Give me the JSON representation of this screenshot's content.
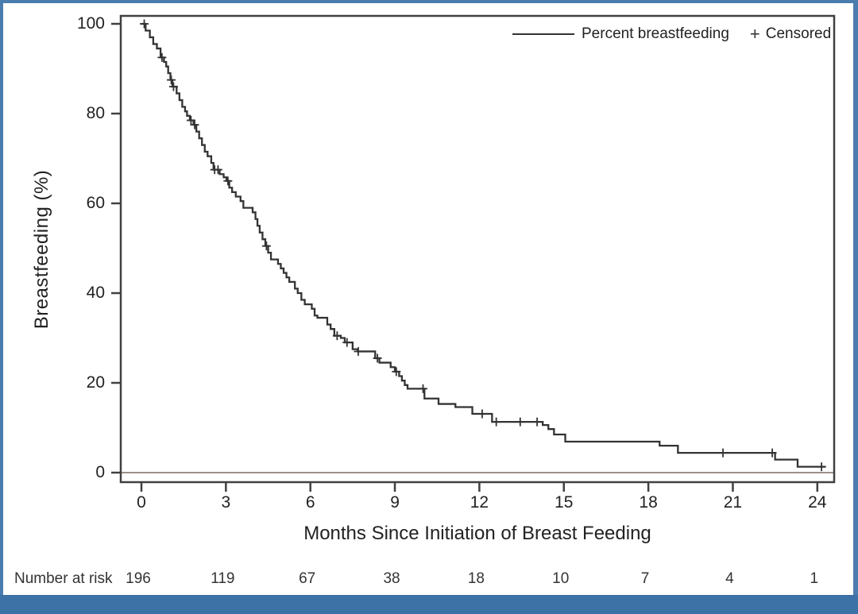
{
  "chart_data": {
    "type": "line",
    "subtype": "kaplan-meier-step",
    "xlabel": "Months Since Initiation of Breast Feeding",
    "ylabel": "Breastfeeding (%)",
    "x_ticks": [
      0,
      3,
      6,
      9,
      12,
      15,
      18,
      21,
      24
    ],
    "y_ticks": [
      0,
      20,
      40,
      60,
      80,
      100
    ],
    "xlim": [
      -0.75,
      24.6
    ],
    "ylim": [
      -2,
      102
    ],
    "grid": false,
    "legend_position": "top-right-inside",
    "legend": {
      "series_label": "Percent breastfeeding",
      "censored_marker": "+",
      "censored_label": "Censored"
    },
    "series_start": [
      0,
      100
    ],
    "series_end_month": 24.3,
    "steps": [
      [
        0.15,
        98.5
      ],
      [
        0.3,
        97
      ],
      [
        0.42,
        95.5
      ],
      [
        0.55,
        94.5
      ],
      [
        0.68,
        92.5
      ],
      [
        0.8,
        91.5
      ],
      [
        0.88,
        90.5
      ],
      [
        0.95,
        89
      ],
      [
        1.03,
        87.5
      ],
      [
        1.1,
        86
      ],
      [
        1.25,
        84.5
      ],
      [
        1.35,
        83
      ],
      [
        1.45,
        81.5
      ],
      [
        1.55,
        80.5
      ],
      [
        1.62,
        79.5
      ],
      [
        1.72,
        78.5
      ],
      [
        1.85,
        77.5
      ],
      [
        1.95,
        76
      ],
      [
        2.05,
        74.5
      ],
      [
        2.15,
        73
      ],
      [
        2.25,
        71.5
      ],
      [
        2.35,
        70.5
      ],
      [
        2.48,
        69
      ],
      [
        2.56,
        67.5
      ],
      [
        2.78,
        66.5
      ],
      [
        2.92,
        65.8
      ],
      [
        3.02,
        65
      ],
      [
        3.12,
        63.5
      ],
      [
        3.22,
        62.5
      ],
      [
        3.35,
        61.5
      ],
      [
        3.52,
        60.5
      ],
      [
        3.62,
        59
      ],
      [
        3.95,
        58
      ],
      [
        4.05,
        56.5
      ],
      [
        4.12,
        55
      ],
      [
        4.2,
        53.5
      ],
      [
        4.3,
        52
      ],
      [
        4.4,
        50.5
      ],
      [
        4.5,
        49
      ],
      [
        4.6,
        47.5
      ],
      [
        4.85,
        46.5
      ],
      [
        4.95,
        45.5
      ],
      [
        5.05,
        44.5
      ],
      [
        5.15,
        43.5
      ],
      [
        5.25,
        42.5
      ],
      [
        5.45,
        41
      ],
      [
        5.55,
        40
      ],
      [
        5.68,
        38.5
      ],
      [
        5.8,
        37.5
      ],
      [
        6.05,
        36.5
      ],
      [
        6.15,
        35
      ],
      [
        6.25,
        34.5
      ],
      [
        6.6,
        33
      ],
      [
        6.72,
        32
      ],
      [
        6.85,
        30.5
      ],
      [
        7.08,
        30
      ],
      [
        7.22,
        29
      ],
      [
        7.5,
        27.5
      ],
      [
        7.68,
        27
      ],
      [
        8.3,
        25.5
      ],
      [
        8.45,
        24.5
      ],
      [
        8.85,
        23.5
      ],
      [
        9.0,
        22.5
      ],
      [
        9.15,
        21.5
      ],
      [
        9.25,
        20.5
      ],
      [
        9.35,
        19.5
      ],
      [
        9.45,
        18.7
      ],
      [
        10.05,
        16.5
      ],
      [
        10.55,
        15.3
      ],
      [
        11.15,
        14.6
      ],
      [
        11.75,
        13.1
      ],
      [
        12.45,
        11.3
      ],
      [
        14.25,
        10.6
      ],
      [
        14.45,
        9.7
      ],
      [
        14.65,
        8.5
      ],
      [
        15.05,
        6.9
      ],
      [
        18.4,
        6.0
      ],
      [
        19.05,
        4.4
      ],
      [
        22.5,
        2.9
      ],
      [
        23.3,
        1.3
      ]
    ],
    "censored_months": [
      0.1,
      0.73,
      1.06,
      1.14,
      1.76,
      1.89,
      2.6,
      2.72,
      3.07,
      4.44,
      6.95,
      7.3,
      7.7,
      8.38,
      9.05,
      10.0,
      12.1,
      12.6,
      13.45,
      14.05,
      20.65,
      22.4,
      24.15
    ],
    "at_risk": {
      "label": "Number at risk",
      "months": [
        0,
        3,
        6,
        9,
        12,
        15,
        18,
        21,
        24
      ],
      "values": [
        196,
        119,
        67,
        38,
        18,
        10,
        7,
        4,
        1
      ]
    },
    "colors": {
      "curve": "#333333",
      "frame": "#404040",
      "zero_reference_line": "#9d8f88",
      "border_blue": "#4a7cae",
      "bottom_bar_blue": "#3d72a6",
      "text": "#222222"
    }
  }
}
